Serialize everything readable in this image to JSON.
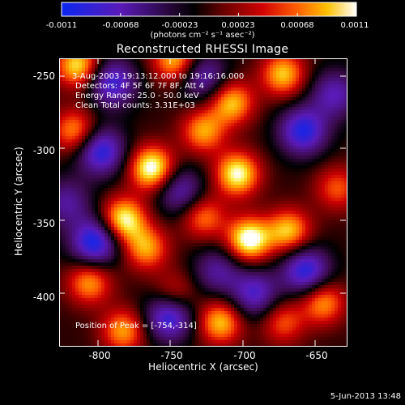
{
  "colorbar": {
    "ticks": [
      "-0.0011",
      "-0.00068",
      "-0.00023",
      "0.00023",
      "0.00068",
      "0.0011"
    ],
    "units": "(photons cm⁻² s⁻¹ asec⁻²)"
  },
  "title": "Reconstructed RHESSI Image",
  "annotations": {
    "time_range": "3-Aug-2003 19:13:12.000 to 19:16:16.000",
    "detectors": "Detectors: 4F 5F 6F 7F 8F, Att 4",
    "energy": "Energy Range: 25.0 - 50.0 keV",
    "clean": "Clean    Total counts: 3.31E+03",
    "peak": "Position of Peak = [-754,-314]"
  },
  "axes": {
    "xlabel": "Heliocentric X (arcsec)",
    "ylabel": "Heliocentric Y (arcsec)",
    "xticks": [
      "-800",
      "-750",
      "-700",
      "-650"
    ],
    "yticks": [
      "-250",
      "-300",
      "-350",
      "-400"
    ]
  },
  "timestamp": "5-Jun-2013 13:48",
  "chart_data": {
    "type": "heatmap",
    "title": "Reconstructed RHESSI Image",
    "xlabel": "Heliocentric X (arcsec)",
    "ylabel": "Heliocentric Y (arcsec)",
    "xlim": [
      -824,
      -630
    ],
    "ylim": [
      -432,
      -238
    ],
    "colorbar_range": [
      -0.0011,
      0.0011
    ],
    "colormap": [
      "#0b27f0",
      "#5a1ab8",
      "#3a0a4a",
      "#000000",
      "#6a0000",
      "#cc0000",
      "#ff5500",
      "#ffaa00",
      "#ffee44",
      "#ffffff"
    ],
    "peak": {
      "x": -754,
      "y": -314
    }
  }
}
